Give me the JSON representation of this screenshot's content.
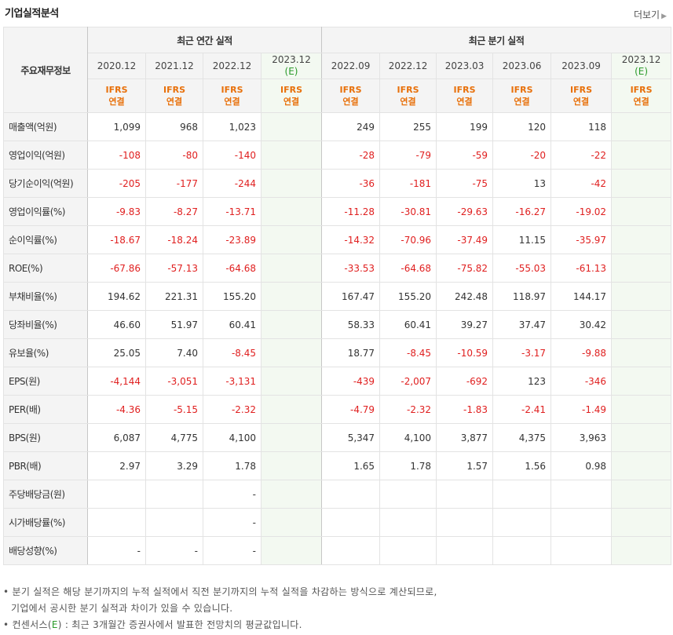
{
  "title": "기업실적분석",
  "more_label": "더보기",
  "annual_header": "최근 연간 실적",
  "quarter_header": "최근 분기 실적",
  "row_header": "주요재무정보",
  "annual_periods": [
    {
      "label": "2020.12",
      "est": ""
    },
    {
      "label": "2021.12",
      "est": ""
    },
    {
      "label": "2022.12",
      "est": ""
    },
    {
      "label": "2023.12",
      "est": "(E)"
    }
  ],
  "quarter_periods": [
    {
      "label": "2022.09",
      "est": ""
    },
    {
      "label": "2022.12",
      "est": ""
    },
    {
      "label": "2023.03",
      "est": ""
    },
    {
      "label": "2023.06",
      "est": ""
    },
    {
      "label": "2023.09",
      "est": ""
    },
    {
      "label": "2023.12",
      "est": "(E)"
    }
  ],
  "basis_line1": "IFRS",
  "basis_line2": "연결",
  "rows": [
    {
      "label": "매출액(억원)",
      "values": [
        "1,099",
        "968",
        "1,023",
        "",
        "249",
        "255",
        "199",
        "120",
        "118",
        ""
      ]
    },
    {
      "label": "영업이익(억원)",
      "values": [
        "-108",
        "-80",
        "-140",
        "",
        "-28",
        "-79",
        "-59",
        "-20",
        "-22",
        ""
      ]
    },
    {
      "label": "당기순이익(억원)",
      "values": [
        "-205",
        "-177",
        "-244",
        "",
        "-36",
        "-181",
        "-75",
        "13",
        "-42",
        ""
      ]
    },
    {
      "label": "영업이익률(%)",
      "values": [
        "-9.83",
        "-8.27",
        "-13.71",
        "",
        "-11.28",
        "-30.81",
        "-29.63",
        "-16.27",
        "-19.02",
        ""
      ]
    },
    {
      "label": "순이익률(%)",
      "values": [
        "-18.67",
        "-18.24",
        "-23.89",
        "",
        "-14.32",
        "-70.96",
        "-37.49",
        "11.15",
        "-35.97",
        ""
      ]
    },
    {
      "label": "ROE(%)",
      "values": [
        "-67.86",
        "-57.13",
        "-64.68",
        "",
        "-33.53",
        "-64.68",
        "-75.82",
        "-55.03",
        "-61.13",
        ""
      ]
    },
    {
      "label": "부채비율(%)",
      "values": [
        "194.62",
        "221.31",
        "155.20",
        "",
        "167.47",
        "155.20",
        "242.48",
        "118.97",
        "144.17",
        ""
      ]
    },
    {
      "label": "당좌비율(%)",
      "values": [
        "46.60",
        "51.97",
        "60.41",
        "",
        "58.33",
        "60.41",
        "39.27",
        "37.47",
        "30.42",
        ""
      ]
    },
    {
      "label": "유보율(%)",
      "values": [
        "25.05",
        "7.40",
        "-8.45",
        "",
        "18.77",
        "-8.45",
        "-10.59",
        "-3.17",
        "-9.88",
        ""
      ]
    },
    {
      "label": "EPS(원)",
      "values": [
        "-4,144",
        "-3,051",
        "-3,131",
        "",
        "-439",
        "-2,007",
        "-692",
        "123",
        "-346",
        ""
      ]
    },
    {
      "label": "PER(배)",
      "values": [
        "-4.36",
        "-5.15",
        "-2.32",
        "",
        "-4.79",
        "-2.32",
        "-1.83",
        "-2.41",
        "-1.49",
        ""
      ]
    },
    {
      "label": "BPS(원)",
      "values": [
        "6,087",
        "4,775",
        "4,100",
        "",
        "5,347",
        "4,100",
        "3,877",
        "4,375",
        "3,963",
        ""
      ]
    },
    {
      "label": "PBR(배)",
      "values": [
        "2.97",
        "3.29",
        "1.78",
        "",
        "1.65",
        "1.78",
        "1.57",
        "1.56",
        "0.98",
        ""
      ]
    },
    {
      "label": "주당배당금(원)",
      "values": [
        "",
        "",
        "-",
        "",
        "",
        "",
        "",
        "",
        "",
        ""
      ]
    },
    {
      "label": "시가배당률(%)",
      "values": [
        "",
        "",
        "-",
        "",
        "",
        "",
        "",
        "",
        "",
        ""
      ]
    },
    {
      "label": "배당성향(%)",
      "values": [
        "-",
        "-",
        "-",
        "",
        "",
        "",
        "",
        "",
        "",
        ""
      ]
    }
  ],
  "footnote1": "• 분기 실적은 해당 분기까지의 누적 실적에서 직전 분기까지의 누적 실적을 차감하는 방식으로 계산되므로,",
  "footnote2": "기업에서 공시한 분기 실적과 차이가 있을 수 있습니다.",
  "footnote3_pre": "• 컨센서스(",
  "footnote3_e": "E",
  "footnote3_post": ") : 최근 3개월간 증권사에서 발표한 전망치의 평균값입니다."
}
